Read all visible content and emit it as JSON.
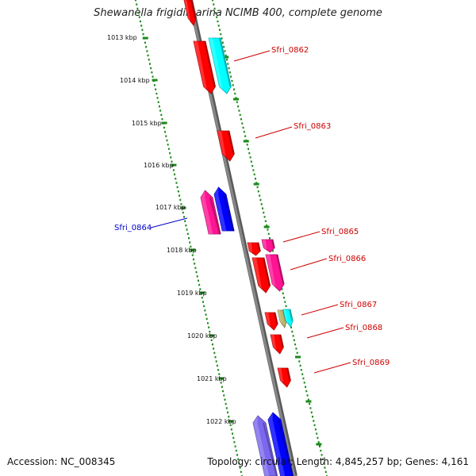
{
  "title": "Shewanella frigidimarina NCIMB 400, complete genome",
  "footer": {
    "accession": "Accession: NC_008345",
    "summary": "Topology: circular; Length: 4,845,257 bp; Genes: 4,161"
  },
  "colors": {
    "backbone": "#888888",
    "tick": "#1a8a1a",
    "forward_label": "#cc0000",
    "reverse_label": "#0000cc",
    "red": "#ff0000",
    "magenta": "#ff1493",
    "blue": "#0000ff",
    "cyan": "#00ffff",
    "slate": "#7b68ee",
    "khaki": "#bdb76b"
  },
  "kbp_labels": [
    "1013 kbp",
    "1014 kbp",
    "1015 kbp",
    "1016 kbp",
    "1017 kbp",
    "1018 kbp",
    "1019 kbp",
    "1020 kbp",
    "1021 kbp",
    "1022 kbp"
  ],
  "gene_labels": [
    {
      "text": "Sfri_0862",
      "strand": "forward"
    },
    {
      "text": "Sfri_0863",
      "strand": "forward"
    },
    {
      "text": "Sfri_0864",
      "strand": "reverse"
    },
    {
      "text": "Sfri_0865",
      "strand": "forward"
    },
    {
      "text": "Sfri_0866",
      "strand": "forward"
    },
    {
      "text": "Sfri_0867",
      "strand": "forward"
    },
    {
      "text": "Sfri_0868",
      "strand": "forward"
    },
    {
      "text": "Sfri_0869",
      "strand": "forward"
    }
  ],
  "features": [
    {
      "color": "red",
      "strand": "forward"
    },
    {
      "color": "red",
      "strand": "forward"
    },
    {
      "color": "cyan",
      "strand": "forward"
    },
    {
      "color": "red",
      "strand": "forward"
    },
    {
      "color": "magenta",
      "strand": "reverse"
    },
    {
      "color": "blue",
      "strand": "reverse"
    },
    {
      "color": "red",
      "strand": "forward"
    },
    {
      "color": "magenta",
      "strand": "forward"
    },
    {
      "color": "red",
      "strand": "forward"
    },
    {
      "color": "magenta",
      "strand": "forward"
    },
    {
      "color": "red",
      "strand": "forward"
    },
    {
      "color": "khaki",
      "strand": "forward"
    },
    {
      "color": "cyan",
      "strand": "forward"
    },
    {
      "color": "red",
      "strand": "forward"
    },
    {
      "color": "red",
      "strand": "forward"
    },
    {
      "color": "slate",
      "strand": "reverse"
    },
    {
      "color": "blue",
      "strand": "reverse"
    }
  ]
}
